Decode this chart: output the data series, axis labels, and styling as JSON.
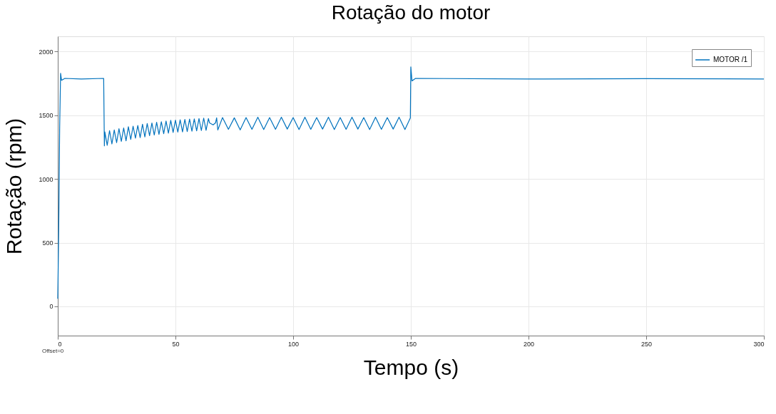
{
  "chart_data": {
    "type": "line",
    "title": "Rotação do motor",
    "xlabel": "Tempo (s)",
    "ylabel": "Rotação (rpm)",
    "annotations": [
      "Offset=0"
    ],
    "xlim": [
      0,
      300
    ],
    "xticks": [
      0,
      50,
      100,
      150,
      200,
      250,
      300
    ],
    "ylim": [
      -230,
      2120
    ],
    "yticks": [
      0,
      500,
      1000,
      1500,
      2000
    ],
    "grid": true,
    "legend": "top right",
    "marker": "none",
    "line_style": "solid",
    "series": [
      {
        "name": "MOTOR /1",
        "color": "#0072bd",
        "x": [
          0,
          0.4,
          0.8,
          1.2,
          1.6,
          3,
          10,
          19.5,
          19.8,
          20,
          21,
          22,
          23,
          24,
          25,
          26,
          27,
          28,
          29,
          30,
          31,
          32,
          33,
          34,
          35,
          36,
          37,
          38,
          39,
          40,
          41,
          42,
          43,
          44,
          45,
          46,
          47,
          48,
          49,
          50,
          51,
          52,
          53,
          54,
          55,
          56,
          57,
          58,
          59,
          60,
          61,
          62,
          63,
          64,
          64.5,
          66,
          67,
          67.5,
          68,
          70,
          72.5,
          75,
          77.5,
          80,
          82.5,
          85,
          87.5,
          90,
          92.5,
          95,
          97.5,
          100,
          102.5,
          105,
          107.5,
          110,
          112.5,
          115,
          117.5,
          120,
          122.5,
          125,
          127.5,
          130,
          132.5,
          135,
          137.5,
          140,
          142.5,
          145,
          147.5,
          149.8,
          150,
          150.5,
          152,
          200,
          250,
          300
        ],
        "values": [
          60,
          600,
          1400,
          1830,
          1775,
          1790,
          1785,
          1790,
          1260,
          1370,
          1265,
          1380,
          1275,
          1385,
          1285,
          1395,
          1295,
          1400,
          1300,
          1410,
          1310,
          1415,
          1320,
          1420,
          1325,
          1430,
          1330,
          1435,
          1340,
          1440,
          1345,
          1445,
          1350,
          1450,
          1355,
          1455,
          1360,
          1460,
          1365,
          1462,
          1368,
          1465,
          1370,
          1468,
          1372,
          1470,
          1375,
          1472,
          1378,
          1475,
          1380,
          1478,
          1382,
          1475,
          1440,
          1425,
          1440,
          1480,
          1385,
          1482,
          1390,
          1480,
          1385,
          1482,
          1390,
          1485,
          1388,
          1482,
          1390,
          1485,
          1392,
          1482,
          1388,
          1485,
          1390,
          1482,
          1392,
          1485,
          1388,
          1482,
          1390,
          1485,
          1392,
          1482,
          1388,
          1485,
          1390,
          1482,
          1392,
          1485,
          1388,
          1480,
          1880,
          1770,
          1790,
          1785,
          1788,
          1785
        ]
      }
    ]
  }
}
